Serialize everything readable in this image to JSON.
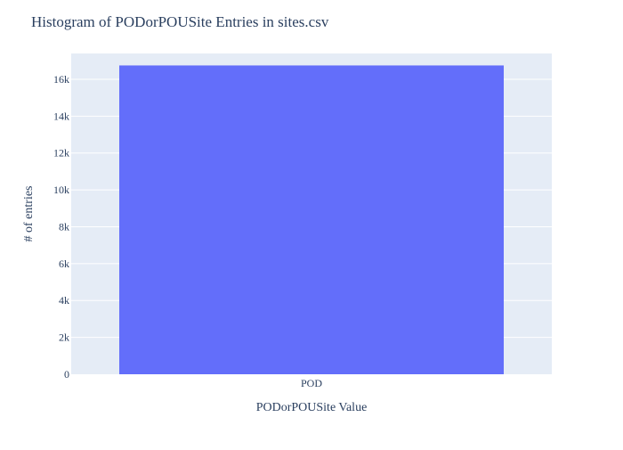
{
  "chart_data": {
    "type": "bar",
    "title": "Histogram of PODorPOUSite Entries in sites.csv",
    "xlabel": "PODorPOUSite Value",
    "ylabel": "# of entries",
    "categories": [
      "POD"
    ],
    "values": [
      16750
    ],
    "ylim": [
      0,
      17400
    ],
    "yticks": [
      0,
      2000,
      4000,
      6000,
      8000,
      10000,
      12000,
      14000,
      16000
    ],
    "ytick_labels": [
      "0",
      "2k",
      "4k",
      "6k",
      "8k",
      "10k",
      "12k",
      "14k",
      "16k"
    ],
    "grid": true,
    "legend": "none",
    "colors": {
      "bar": "#636efa",
      "plot_background": "#e5ecf6",
      "gridline": "#ffffff",
      "text": "#2a3f5f"
    }
  }
}
